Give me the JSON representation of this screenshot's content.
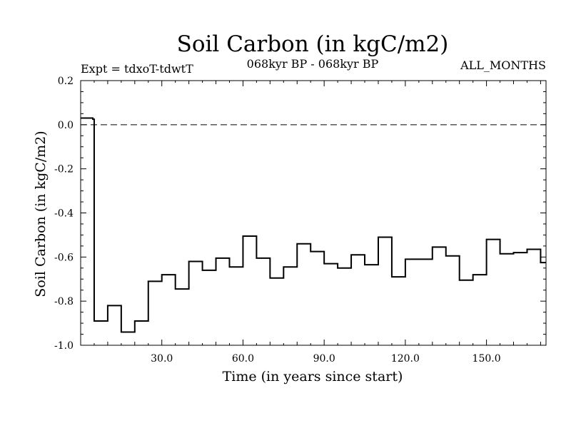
{
  "chart_data": {
    "type": "line",
    "style": "step",
    "title": "Soil Carbon (in kgC/m2)",
    "subtitle": "068kyr BP - 068kyr BP",
    "experiment": "Expt = tdxoT-tdwtT",
    "period": "ALL_MONTHS",
    "xlabel": "Time (in years since start)",
    "ylabel": "Soil Carbon (in kgC/m2)",
    "xlim": [
      0,
      172
    ],
    "ylim": [
      -1.0,
      0.2
    ],
    "x_ticks": [
      30,
      60,
      90,
      120,
      150
    ],
    "x_tick_labels": [
      "30.0",
      "60.0",
      "90.0",
      "120.0",
      "150.0"
    ],
    "y_ticks": [
      0.2,
      0.0,
      -0.2,
      -0.4,
      -0.6,
      -0.8,
      -1.0
    ],
    "y_tick_labels": [
      "0.2",
      "0.0",
      "-0.2",
      "-0.4",
      "-0.6",
      "-0.8",
      "-1.0"
    ],
    "reference_line": {
      "y": 0.0,
      "style": "dashed"
    },
    "grid": false,
    "series": [
      {
        "color": "#000000",
        "x": [
          0,
          4.5,
          5,
          10,
          15,
          20,
          25,
          30,
          35,
          40,
          45,
          50,
          55,
          60,
          65,
          70,
          75,
          80,
          85,
          90,
          95,
          100,
          105,
          110,
          115,
          120,
          125,
          130,
          135,
          140,
          145,
          150,
          155,
          160,
          165,
          170
        ],
        "values": [
          0.03,
          0.025,
          -0.89,
          -0.82,
          -0.94,
          -0.89,
          -0.71,
          -0.68,
          -0.745,
          -0.62,
          -0.66,
          -0.605,
          -0.645,
          -0.505,
          -0.605,
          -0.695,
          -0.645,
          -0.54,
          -0.575,
          -0.63,
          -0.65,
          -0.59,
          -0.635,
          -0.51,
          -0.69,
          -0.61,
          -0.61,
          -0.555,
          -0.595,
          -0.705,
          -0.68,
          -0.52,
          -0.585,
          -0.58,
          -0.565,
          -0.625
        ]
      }
    ]
  }
}
